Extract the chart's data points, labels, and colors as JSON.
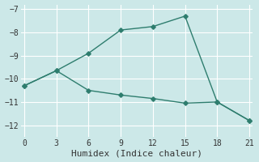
{
  "xlabel": "Humidex (Indice chaleur)",
  "background_color": "#cce8e8",
  "grid_color": "#ffffff",
  "line_color": "#2e7d6e",
  "line1_x": [
    0,
    3,
    6,
    9,
    12,
    15,
    18,
    21
  ],
  "line1_y": [
    -10.3,
    -9.65,
    -8.9,
    -7.9,
    -7.75,
    -7.3,
    -11.0,
    -11.8
  ],
  "line2_x": [
    0,
    3,
    6,
    9,
    12,
    15,
    18,
    21
  ],
  "line2_y": [
    -10.3,
    -9.65,
    -10.5,
    -10.7,
    -10.85,
    -11.05,
    -11.0,
    -11.8
  ],
  "xlim": [
    -0.3,
    21.3
  ],
  "ylim": [
    -12.5,
    -6.8
  ],
  "xticks": [
    0,
    3,
    6,
    9,
    12,
    15,
    18,
    21
  ],
  "yticks": [
    -12,
    -11,
    -10,
    -9,
    -8,
    -7
  ],
  "marker": "D",
  "markersize": 2.8,
  "linewidth": 1.0,
  "tick_fontsize": 7,
  "label_fontsize": 8
}
